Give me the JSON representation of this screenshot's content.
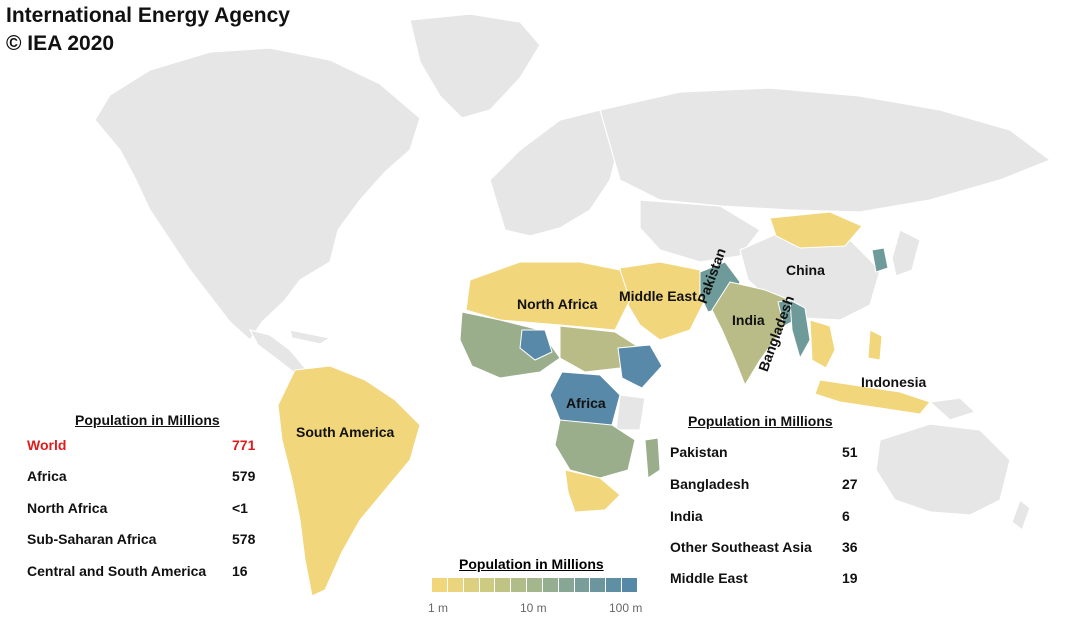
{
  "credits": {
    "line1": "International Energy Agency",
    "line2": "© IEA 2020"
  },
  "regions": {
    "north_africa": "North Africa",
    "middle_east": "Middle East",
    "pakistan": "Pakistan",
    "india": "India",
    "bangladesh": "Bangladesh",
    "china": "China",
    "indonesia": "Indonesia",
    "africa": "Africa",
    "south_america": "South America"
  },
  "left_panel": {
    "title": "Population in Millions",
    "rows": [
      {
        "label": "World",
        "value": "771",
        "highlight_color": "#e01b1b"
      },
      {
        "label": "Africa",
        "value": "579"
      },
      {
        "label": "North Africa",
        "value": "<1"
      },
      {
        "label": "Sub-Saharan Africa",
        "value": "578"
      },
      {
        "label": "Central and South America",
        "value": "16"
      }
    ]
  },
  "right_panel": {
    "title": "Population in Millions",
    "rows": [
      {
        "label": "Pakistan",
        "value": "51"
      },
      {
        "label": "Bangladesh",
        "value": "27"
      },
      {
        "label": "India",
        "value": "6"
      },
      {
        "label": "Other Southeast Asia",
        "value": "36"
      },
      {
        "label": "Middle East",
        "value": "19"
      }
    ]
  },
  "legend": {
    "title": "Population in Millions",
    "ticks": [
      "1 m",
      "10 m",
      "100 m"
    ],
    "colors": [
      "#f2d67c",
      "#ead47e",
      "#dccf80",
      "#cdca82",
      "#bfc485",
      "#b1bd88",
      "#a3b68c",
      "#95ae90",
      "#87a694",
      "#799e99",
      "#6c969e",
      "#5f8fa3",
      "#5689a8"
    ]
  }
}
